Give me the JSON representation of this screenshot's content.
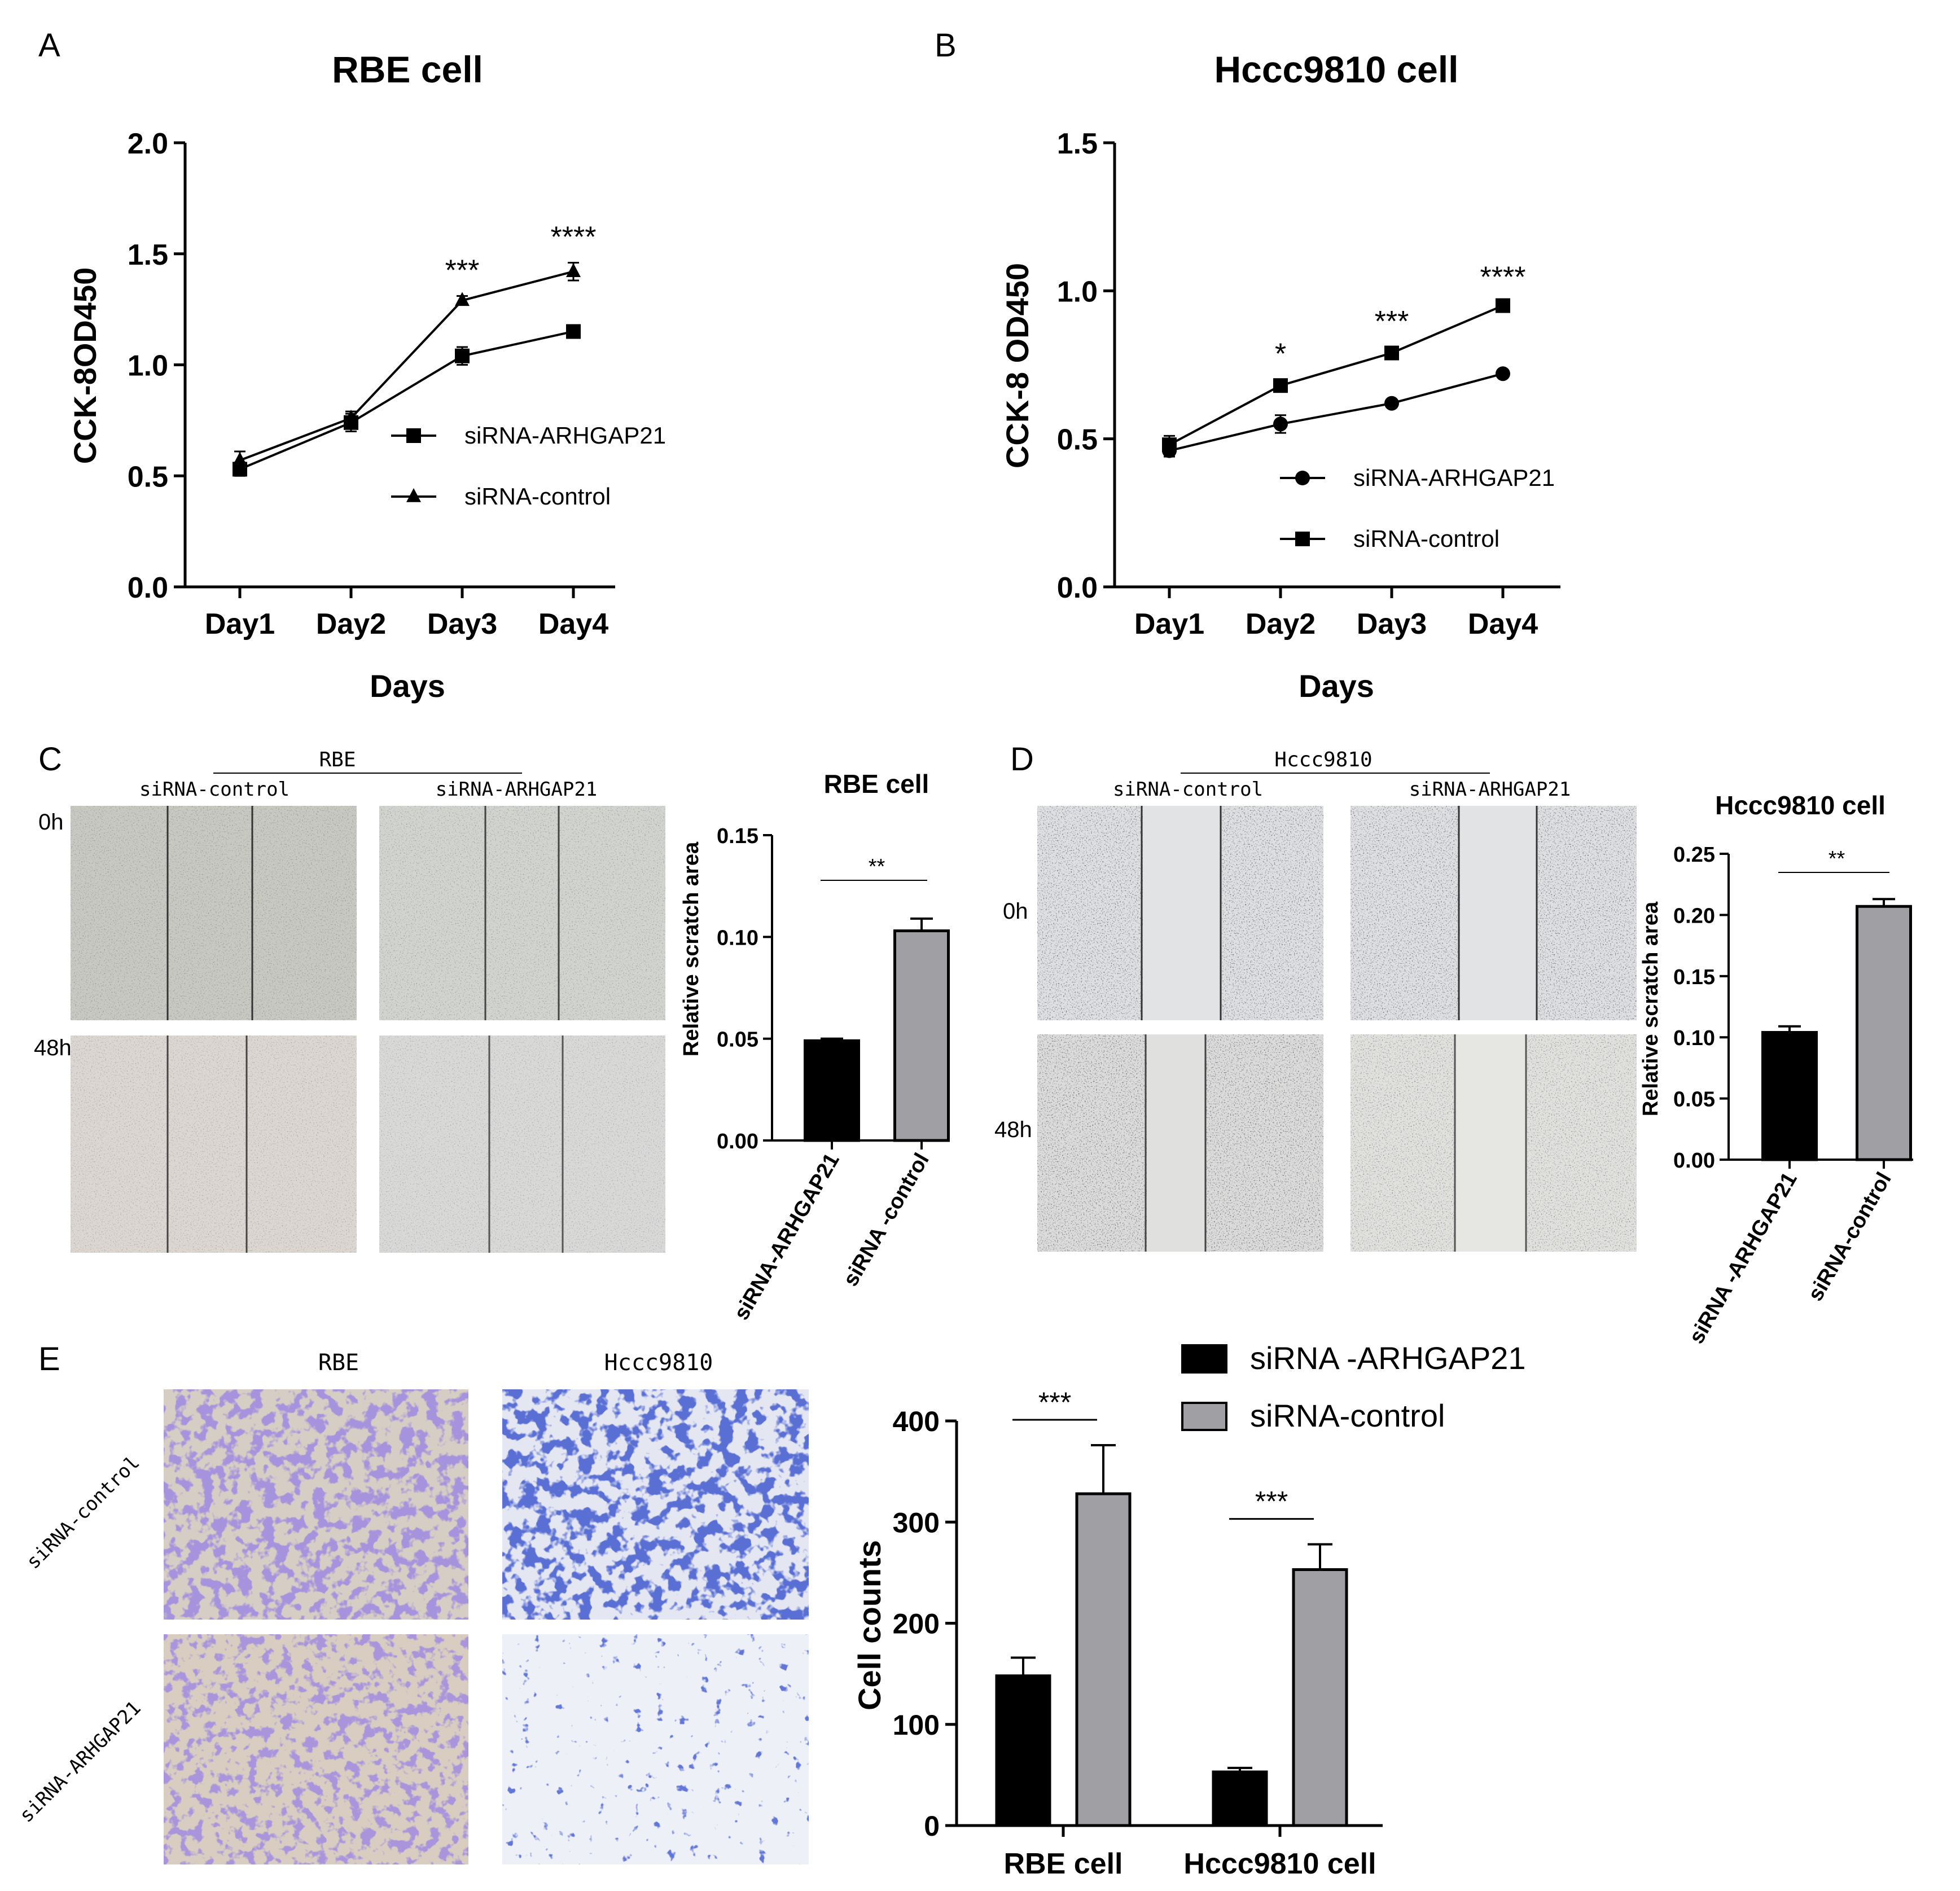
{
  "figure": {
    "panel_letters": [
      "A",
      "B",
      "C",
      "D",
      "E"
    ],
    "panel_c": {
      "cell_line": "RBE",
      "groups": [
        "siRNA-control",
        "siRNA-ARHGAP21"
      ],
      "times": [
        "0h",
        "48h"
      ]
    },
    "panel_d": {
      "cell_line": "Hccc9810",
      "groups": [
        "siRNA-control",
        "siRNA-ARHGAP21"
      ],
      "times": [
        "0h",
        "48h"
      ]
    },
    "panel_e": {
      "columns": [
        "RBE",
        "Hccc9810"
      ],
      "rows": [
        "siRNA-control",
        "siRNA-ARHGAP21"
      ]
    },
    "colors": {
      "black_bar": "#000000",
      "grey_bar": "#a0a0a4",
      "scratch_rbe_0h": "#c8c9c1",
      "scratch_rbe_48h": "#ddd7d1",
      "scratch_rbe_si": "#d9dad8",
      "scratch_hccc": "#dfe0e2",
      "stain_rbe": "#6a50b8",
      "stain_hccc": "#1c2fa8"
    }
  },
  "chart_data": [
    {
      "id": "A",
      "type": "line",
      "title": "RBE cell",
      "xlabel": "Days",
      "ylabel": "CCK-8OD450",
      "categories": [
        "Day1",
        "Day2",
        "Day3",
        "Day4"
      ],
      "ylim": [
        0,
        2.0
      ],
      "yticks": [
        "0.0",
        "0.5",
        "1.0",
        "1.5",
        "2.0"
      ],
      "series": [
        {
          "name": "siRNA-ARHGAP21",
          "marker": "square",
          "values": [
            0.53,
            0.74,
            1.04,
            1.15
          ],
          "errors": [
            0.03,
            0.04,
            0.04,
            0.02
          ]
        },
        {
          "name": "siRNA-control",
          "marker": "triangle",
          "values": [
            0.57,
            0.76,
            1.29,
            1.42
          ],
          "errors": [
            0.04,
            0.03,
            0.02,
            0.04
          ]
        }
      ],
      "annotations": [
        {
          "category": "Day3",
          "text": "***"
        },
        {
          "category": "Day4",
          "text": "****"
        }
      ],
      "legend_position": "inside-right"
    },
    {
      "id": "B",
      "type": "line",
      "title": "Hccc9810 cell",
      "xlabel": "Days",
      "ylabel": "CCK-8 OD450",
      "categories": [
        "Day1",
        "Day2",
        "Day3",
        "Day4"
      ],
      "ylim": [
        0,
        1.5
      ],
      "yticks": [
        "0.0",
        "0.5",
        "1.0",
        "1.5"
      ],
      "series": [
        {
          "name": "siRNA-ARHGAP21",
          "marker": "circle",
          "values": [
            0.46,
            0.55,
            0.62,
            0.72
          ],
          "errors": [
            0.02,
            0.03,
            0.01,
            0.01
          ]
        },
        {
          "name": "siRNA-control",
          "marker": "square",
          "values": [
            0.48,
            0.68,
            0.79,
            0.95
          ],
          "errors": [
            0.03,
            0.02,
            0.02,
            0.01
          ]
        }
      ],
      "annotations": [
        {
          "category": "Day2",
          "text": "*"
        },
        {
          "category": "Day3",
          "text": "***"
        },
        {
          "category": "Day4",
          "text": "****"
        }
      ],
      "legend_position": "inside-right"
    },
    {
      "id": "C",
      "type": "bar",
      "title": "RBE cell",
      "xlabel": "",
      "ylabel": "Relative scratch area",
      "categories": [
        "siRNA-ARHGAP21",
        "siRNA -control"
      ],
      "values": [
        0.049,
        0.103
      ],
      "errors": [
        0.001,
        0.006
      ],
      "ylim": [
        0,
        0.15
      ],
      "yticks": [
        "0.00",
        "0.05",
        "0.10",
        "0.15"
      ],
      "significance": "**"
    },
    {
      "id": "D",
      "type": "bar",
      "title": "Hccc9810 cell",
      "xlabel": "",
      "ylabel": "Relative scratch area",
      "categories": [
        "siRNA -ARHGAP21",
        "siRNA-control"
      ],
      "values": [
        0.104,
        0.207
      ],
      "errors": [
        0.005,
        0.006
      ],
      "ylim": [
        0,
        0.25
      ],
      "yticks": [
        "0.00",
        "0.05",
        "0.10",
        "0.15",
        "0.20",
        "0.25"
      ],
      "significance": "**"
    },
    {
      "id": "E",
      "type": "bar",
      "title": "",
      "xlabel": "",
      "ylabel": "Cell counts",
      "categories": [
        "RBE cell",
        "Hccc9810 cell"
      ],
      "ylim": [
        0,
        400
      ],
      "yticks": [
        "0",
        "100",
        "200",
        "300",
        "400"
      ],
      "series": [
        {
          "name": "siRNA -ARHGAP21",
          "values": [
            148,
            53
          ],
          "errors": [
            18,
            4
          ]
        },
        {
          "name": "siRNA-control",
          "values": [
            328,
            253
          ],
          "errors": [
            48,
            25
          ]
        }
      ],
      "significance": [
        "***",
        "***"
      ],
      "legend_position": "top-right"
    }
  ]
}
